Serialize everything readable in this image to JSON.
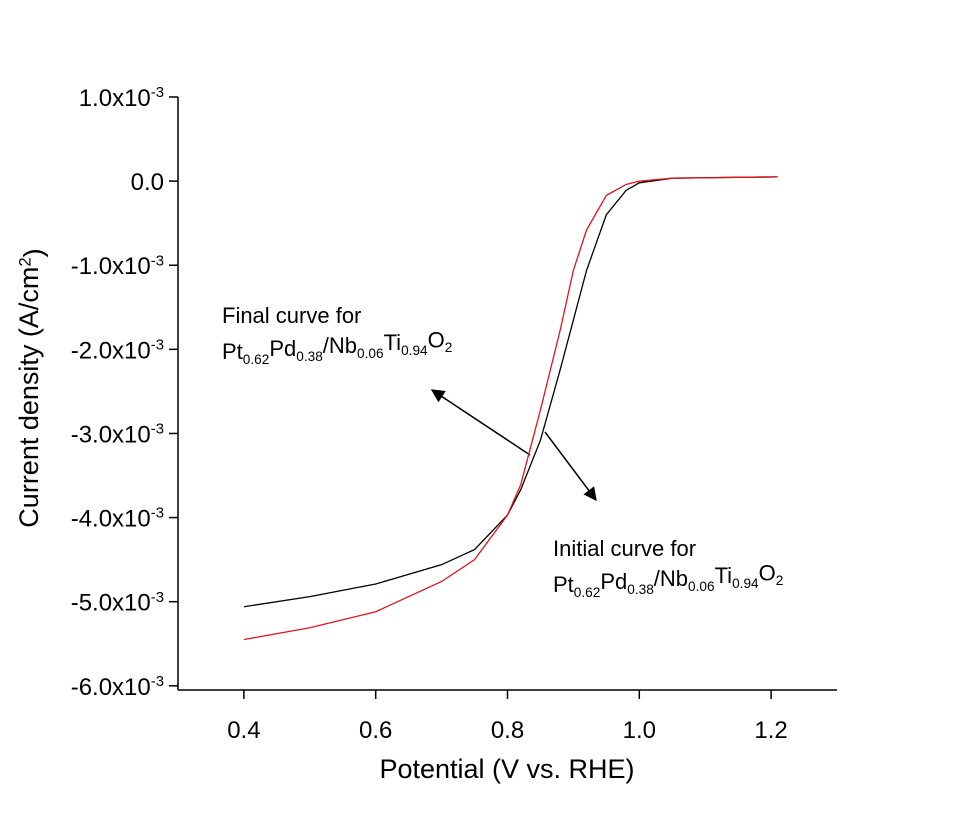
{
  "chart_data": {
    "type": "line",
    "x_label": "Potential (V vs. RHE)",
    "y_label": "Current density (A/cm2)",
    "x": [
      0.4,
      0.5,
      0.6,
      0.7,
      0.75,
      0.8,
      0.82,
      0.85,
      0.88,
      0.9,
      0.92,
      0.95,
      0.98,
      1.0,
      1.05,
      1.1,
      1.15,
      1.21
    ],
    "series": [
      {
        "color": "#000000",
        "values": [
          -0.00506,
          -0.00494,
          -0.00479,
          -0.00456,
          -0.00438,
          -0.00397,
          -0.00367,
          -0.00308,
          -0.00224,
          -0.00165,
          -0.00106,
          -0.0004,
          -0.00011,
          -2e-05,
          3.5e-05,
          4e-05,
          4.5e-05,
          5e-05
        ]
      },
      {
        "color": "#e0141e",
        "values": [
          -0.00545,
          -0.00531,
          -0.00512,
          -0.00476,
          -0.0045,
          -0.00397,
          -0.00361,
          -0.00272,
          -0.00177,
          -0.00106,
          -0.00058,
          -0.00017,
          -4e-05,
          0.0,
          3.5e-05,
          4e-05,
          4.5e-05,
          5e-05
        ]
      }
    ],
    "xlim": [
      0.3,
      1.3
    ],
    "ylim": [
      -0.00605,
      0.001
    ],
    "xticks": [
      0.4,
      0.6,
      0.8,
      {
        "value": 1,
        "label": "1.0"
      },
      1.2
    ],
    "yticks": [
      {
        "value": 0.001,
        "label": "1.0x10-3"
      },
      {
        "value": 0,
        "label": "0.0"
      },
      {
        "value": -0.001,
        "label": "-1.0x10-3"
      },
      {
        "value": -0.002,
        "label": "-2.0x10-3"
      },
      {
        "value": -0.003,
        "label": "-3.0x10-3"
      },
      {
        "value": -0.004,
        "label": "-4.0x10-3"
      },
      {
        "value": -0.005,
        "label": "-5.0x10-3"
      },
      {
        "value": -0.006,
        "label": "-6.0x10-3"
      }
    ],
    "annotations": [
      {
        "line1": "Final curve for",
        "line2": "Pt0.62Pd0.38/Nb0.06Ti0.94O2"
      },
      {
        "line1": "Initial curve for",
        "line2": "Pt0.62Pd0.38/Nb0.06Ti0.94O2"
      }
    ]
  }
}
